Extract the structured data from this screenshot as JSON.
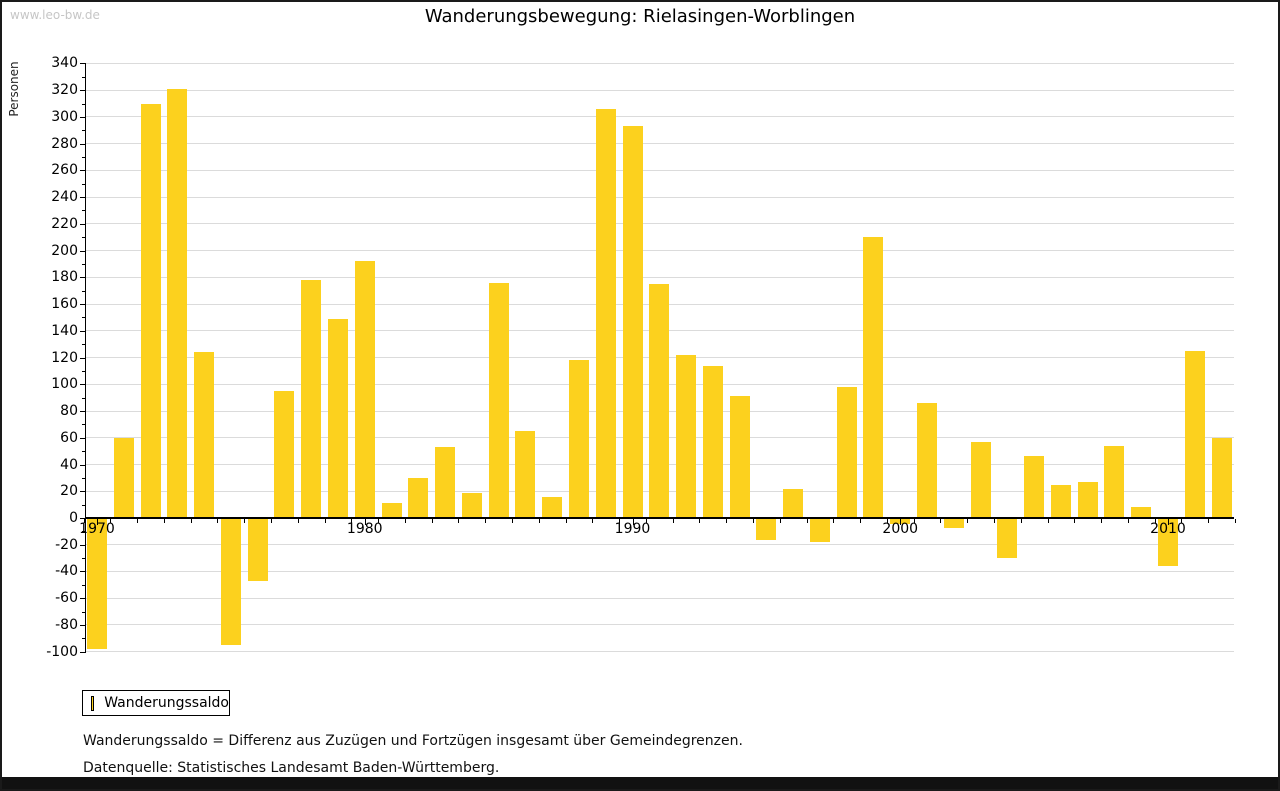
{
  "watermark": "www.leo-bw.de",
  "title": "Wanderungsbewegung: Rielasingen-Worblingen",
  "legend": {
    "label": "Wanderungssaldo",
    "swatch_color": "#FCD11E"
  },
  "footnotes": [
    "Wanderungssaldo = Differenz aus Zuzügen und Fortzügen insgesamt über Gemeindegrenzen.",
    "Datenquelle: Statistisches Landesamt Baden-Württemberg."
  ],
  "colors": {
    "bar": "#FCD11E",
    "gridline": "#DBDBDB",
    "axis": "#000000",
    "text": "#000000",
    "watermark": "#C6C6C6",
    "frame": "#1A1A1A"
  },
  "chart_data": {
    "type": "bar",
    "title": "Wanderungsbewegung: Rielasingen-Worblingen",
    "xlabel": "",
    "ylabel": "Personen",
    "ylim": [
      -100,
      340
    ],
    "ytick_step": 20,
    "ytick_minor_step": 10,
    "grid": true,
    "legend_position": "bottom-left",
    "xticks": [
      1970,
      1980,
      1990,
      2000,
      2010
    ],
    "x": [
      1970,
      1971,
      1972,
      1973,
      1974,
      1975,
      1976,
      1977,
      1978,
      1979,
      1980,
      1981,
      1982,
      1983,
      1984,
      1985,
      1986,
      1987,
      1988,
      1989,
      1990,
      1991,
      1992,
      1993,
      1994,
      1995,
      1996,
      1997,
      1998,
      1999,
      2000,
      2001,
      2002,
      2003,
      2004,
      2005,
      2006,
      2007,
      2008,
      2009,
      2010,
      2011,
      2012
    ],
    "series": [
      {
        "name": "Wanderungssaldo",
        "color": "#FCD11E",
        "values": [
          -97,
          60,
          310,
          321,
          124,
          -94,
          -46,
          95,
          178,
          149,
          192,
          11,
          30,
          53,
          19,
          176,
          65,
          16,
          118,
          306,
          293,
          175,
          122,
          114,
          91,
          -16,
          22,
          -17,
          98,
          210,
          -4,
          86,
          -7,
          57,
          -29,
          46,
          25,
          27,
          54,
          8,
          -35,
          125,
          60
        ]
      }
    ]
  }
}
